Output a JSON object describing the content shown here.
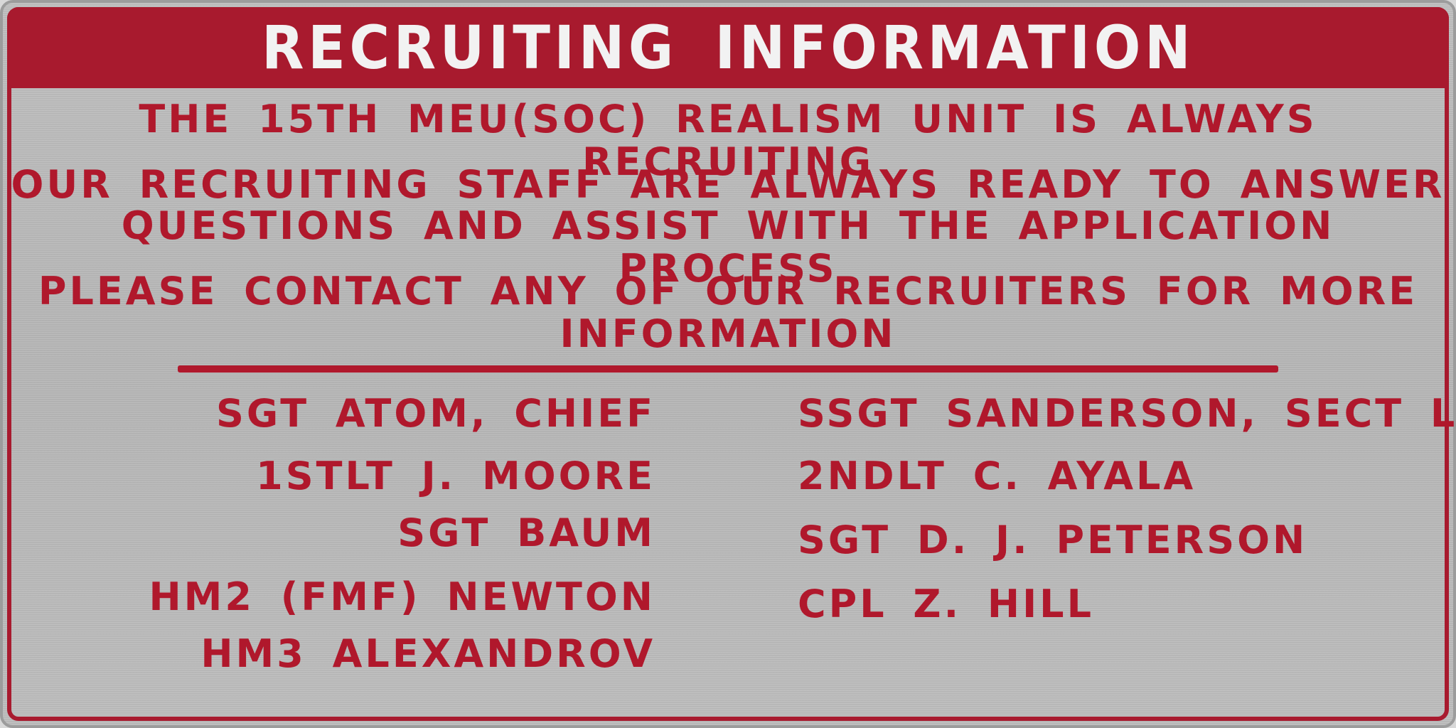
{
  "title": "RECRUITING INFORMATION",
  "body": {
    "line1": "THE 15TH MEU(SOC) REALISM UNIT IS ALWAYS RECRUITING",
    "line2": "OUR RECRUITING STAFF ARE ALWAYS READY TO ANSWER",
    "line3": "QUESTIONS AND ASSIST WITH THE APPLICATION PROCESS",
    "line4": "PLEASE CONTACT ANY OF OUR RECRUITERS FOR MORE",
    "line5": "INFORMATION"
  },
  "recruiters_left": [
    "SGT ATOM, CHIEF",
    "1STLT J. MOORE",
    "SGT BAUM",
    "HM2 (FMF) NEWTON",
    "HM3 ALEXANDROV"
  ],
  "recruiters_right": [
    "SSGT SANDERSON, SECT LDR",
    "2NDLT C. AYALA",
    "SGT D. J. PETERSON",
    "CPL Z. HILL"
  ],
  "colors": {
    "accent_red": "#a81a2e",
    "plate_silver": "#b8b8b8",
    "title_text": "#f2f2f2"
  }
}
